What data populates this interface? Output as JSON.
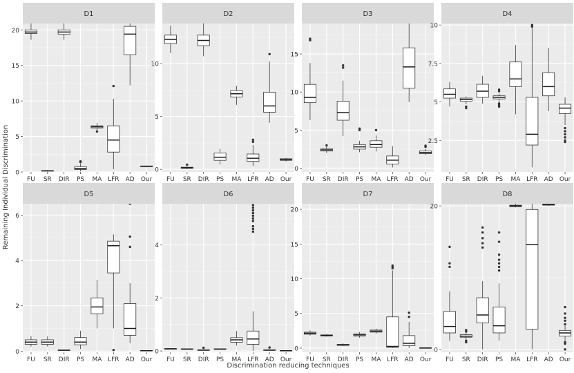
{
  "figure": {
    "xlabel": "Discrimination reducing techniques",
    "ylabel": "Remaining Individual Discrimination"
  },
  "chart_data": [
    {
      "type": "box",
      "title": "D1",
      "categories": [
        "FU",
        "SR",
        "DIR",
        "PS",
        "MA",
        "LFR",
        "AD",
        "Our"
      ],
      "ylim": [
        0,
        20.9
      ],
      "yticks": [
        0,
        5,
        10,
        15,
        20
      ],
      "ytick_labels": [
        "0",
        "5",
        "10",
        "15",
        "20"
      ],
      "boxes": [
        {
          "label": "FU",
          "whislo": 18.6,
          "q1": 19.5,
          "med": 19.7,
          "q3": 20.0,
          "whishi": 20.9,
          "outliers": []
        },
        {
          "label": "SR",
          "whislo": 0.05,
          "q1": 0.12,
          "med": 0.16,
          "q3": 0.2,
          "whishi": 0.28,
          "outliers": []
        },
        {
          "label": "DIR",
          "whislo": 18.6,
          "q1": 19.4,
          "med": 19.7,
          "q3": 20.0,
          "whishi": 20.9,
          "outliers": []
        },
        {
          "label": "PS",
          "whislo": 0.1,
          "q1": 0.35,
          "med": 0.5,
          "q3": 0.75,
          "whishi": 1.2,
          "outliers": [
            1.4,
            1.5
          ]
        },
        {
          "label": "MA",
          "whislo": 5.9,
          "q1": 6.2,
          "med": 6.35,
          "q3": 6.5,
          "whishi": 6.9,
          "outliers": [
            5.7
          ]
        },
        {
          "label": "LFR",
          "whislo": 0.4,
          "q1": 2.8,
          "med": 4.5,
          "q3": 6.5,
          "whishi": 10.3,
          "outliers": [
            12.1
          ]
        },
        {
          "label": "AD",
          "whislo": 12.2,
          "q1": 16.5,
          "med": 19.4,
          "q3": 20.5,
          "whishi": 20.9,
          "outliers": []
        },
        {
          "label": "Our",
          "whislo": 0.7,
          "q1": 0.75,
          "med": 0.8,
          "q3": 0.85,
          "whishi": 0.9,
          "outliers": []
        }
      ]
    },
    {
      "type": "box",
      "title": "D2",
      "categories": [
        "FU",
        "SR",
        "DIR",
        "PS",
        "MA",
        "LFR",
        "AD",
        "Our"
      ],
      "ylim": [
        -0.25,
        13.8
      ],
      "yticks": [
        0,
        5,
        10
      ],
      "ytick_labels": [
        "0",
        "5",
        "10"
      ],
      "boxes": [
        {
          "label": "FU",
          "whislo": 11.0,
          "q1": 11.9,
          "med": 12.3,
          "q3": 12.7,
          "whishi": 13.6,
          "outliers": []
        },
        {
          "label": "SR",
          "whislo": 0.03,
          "q1": 0.1,
          "med": 0.15,
          "q3": 0.2,
          "whishi": 0.3,
          "outliers": [
            0.45
          ]
        },
        {
          "label": "DIR",
          "whislo": 10.7,
          "q1": 11.7,
          "med": 12.2,
          "q3": 12.7,
          "whishi": 13.8,
          "outliers": []
        },
        {
          "label": "PS",
          "whislo": 0.45,
          "q1": 0.85,
          "med": 1.15,
          "q3": 1.55,
          "whishi": 1.95,
          "outliers": []
        },
        {
          "label": "MA",
          "whislo": 6.1,
          "q1": 6.85,
          "med": 7.15,
          "q3": 7.45,
          "whishi": 7.9,
          "outliers": []
        },
        {
          "label": "LFR",
          "whislo": 0.3,
          "q1": 0.75,
          "med": 1.05,
          "q3": 1.45,
          "whishi": 2.3,
          "outliers": [
            2.6,
            2.8
          ]
        },
        {
          "label": "AD",
          "whislo": 4.4,
          "q1": 5.4,
          "med": 6.0,
          "q3": 7.3,
          "whishi": 10.2,
          "outliers": [
            10.9
          ]
        },
        {
          "label": "Our",
          "whislo": 0.75,
          "q1": 0.85,
          "med": 0.92,
          "q3": 1.0,
          "whishi": 1.1,
          "outliers": []
        }
      ]
    },
    {
      "type": "box",
      "title": "D3",
      "categories": [
        "FU",
        "SR",
        "DIR",
        "PS",
        "MA",
        "LFR",
        "AD",
        "Our"
      ],
      "ylim": [
        -0.5,
        19.0
      ],
      "yticks": [
        0,
        5,
        10,
        15
      ],
      "ytick_labels": [
        "0",
        "5",
        "10",
        "15"
      ],
      "boxes": [
        {
          "label": "FU",
          "whislo": 6.3,
          "q1": 8.6,
          "med": 9.3,
          "q3": 11.0,
          "whishi": 13.8,
          "outliers": [
            16.8,
            17.0
          ]
        },
        {
          "label": "SR",
          "whislo": 2.0,
          "q1": 2.25,
          "med": 2.4,
          "q3": 2.55,
          "whishi": 2.85,
          "outliers": [
            3.0
          ]
        },
        {
          "label": "DIR",
          "whislo": 4.2,
          "q1": 6.3,
          "med": 7.3,
          "q3": 8.8,
          "whishi": 11.5,
          "outliers": [
            13.2,
            13.5
          ]
        },
        {
          "label": "PS",
          "whislo": 2.1,
          "q1": 2.5,
          "med": 2.8,
          "q3": 3.1,
          "whishi": 3.6,
          "outliers": [
            5.0,
            5.2
          ]
        },
        {
          "label": "MA",
          "whislo": 2.2,
          "q1": 2.75,
          "med": 3.1,
          "q3": 3.6,
          "whishi": 4.3,
          "outliers": [
            5.0
          ]
        },
        {
          "label": "LFR",
          "whislo": 0.1,
          "q1": 0.55,
          "med": 1.05,
          "q3": 1.6,
          "whishi": 2.9,
          "outliers": []
        },
        {
          "label": "AD",
          "whislo": 8.7,
          "q1": 10.5,
          "med": 13.3,
          "q3": 15.8,
          "whishi": 19.0,
          "outliers": []
        },
        {
          "label": "Our",
          "whislo": 1.7,
          "q1": 1.9,
          "med": 2.05,
          "q3": 2.25,
          "whishi": 2.5,
          "outliers": [
            2.8,
            2.95
          ]
        }
      ]
    },
    {
      "type": "box",
      "title": "D4",
      "categories": [
        "FU",
        "SR",
        "DIR",
        "PS",
        "MA",
        "LFR",
        "AD",
        "Our"
      ],
      "ylim": [
        0.45,
        10.1
      ],
      "yticks": [
        2.5,
        5.0,
        7.5,
        10.0
      ],
      "ytick_labels": [
        "2.5",
        "5",
        "7.5",
        "10"
      ],
      "boxes": [
        {
          "label": "FU",
          "whislo": 4.7,
          "q1": 5.25,
          "med": 5.5,
          "q3": 5.85,
          "whishi": 6.3,
          "outliers": []
        },
        {
          "label": "SR",
          "whislo": 4.85,
          "q1": 5.05,
          "med": 5.15,
          "q3": 5.25,
          "whishi": 5.35,
          "outliers": [
            4.7,
            4.6
          ]
        },
        {
          "label": "DIR",
          "whislo": 4.9,
          "q1": 5.3,
          "med": 5.7,
          "q3": 6.15,
          "whishi": 6.7,
          "outliers": []
        },
        {
          "label": "PS",
          "whislo": 5.0,
          "q1": 5.2,
          "med": 5.3,
          "q3": 5.4,
          "whishi": 5.55,
          "outliers": [
            4.7,
            4.8,
            4.9,
            5.7,
            5.8
          ]
        },
        {
          "label": "MA",
          "whislo": 4.2,
          "q1": 6.0,
          "med": 6.5,
          "q3": 7.6,
          "whishi": 8.7,
          "outliers": []
        },
        {
          "label": "LFR",
          "whislo": 0.75,
          "q1": 2.2,
          "med": 2.9,
          "q3": 5.3,
          "whishi": 9.8,
          "outliers": [
            9.9,
            10.0
          ]
        },
        {
          "label": "AD",
          "whislo": 4.4,
          "q1": 5.4,
          "med": 6.0,
          "q3": 6.9,
          "whishi": 8.5,
          "outliers": []
        },
        {
          "label": "Our",
          "whislo": 3.5,
          "q1": 4.25,
          "med": 4.6,
          "q3": 4.85,
          "whishi": 5.3,
          "outliers": [
            2.4,
            2.5,
            2.7,
            2.9,
            3.1,
            3.3
          ]
        }
      ]
    },
    {
      "type": "box",
      "title": "D5",
      "categories": [
        "FU",
        "SR",
        "DIR",
        "PS",
        "MA",
        "LFR",
        "AD",
        "Our"
      ],
      "ylim": [
        -0.05,
        6.5
      ],
      "yticks": [
        0,
        2,
        4,
        6
      ],
      "ytick_labels": [
        "0",
        "2",
        "4",
        "6"
      ],
      "boxes": [
        {
          "label": "FU",
          "whislo": 0.2,
          "q1": 0.3,
          "med": 0.4,
          "q3": 0.5,
          "whishi": 0.65,
          "outliers": []
        },
        {
          "label": "SR",
          "whislo": 0.2,
          "q1": 0.3,
          "med": 0.4,
          "q3": 0.5,
          "whishi": 0.65,
          "outliers": []
        },
        {
          "label": "DIR",
          "whislo": 0.02,
          "q1": 0.03,
          "med": 0.04,
          "q3": 0.05,
          "whishi": 0.06,
          "outliers": []
        },
        {
          "label": "PS",
          "whislo": 0.1,
          "q1": 0.28,
          "med": 0.4,
          "q3": 0.6,
          "whishi": 0.9,
          "outliers": []
        },
        {
          "label": "MA",
          "whislo": 1.0,
          "q1": 1.65,
          "med": 1.95,
          "q3": 2.35,
          "whishi": 3.15,
          "outliers": []
        },
        {
          "label": "LFR",
          "whislo": 1.0,
          "q1": 3.45,
          "med": 4.65,
          "q3": 4.85,
          "whishi": 5.15,
          "outliers": [
            0.05
          ]
        },
        {
          "label": "AD",
          "whislo": 0.35,
          "q1": 0.7,
          "med": 1.0,
          "q3": 2.1,
          "whishi": 3.0,
          "outliers": [
            4.6,
            5.05,
            6.5
          ]
        },
        {
          "label": "Our",
          "whislo": 0.0,
          "q1": 0.01,
          "med": 0.02,
          "q3": 0.03,
          "whishi": 0.04,
          "outliers": []
        }
      ]
    },
    {
      "type": "box",
      "title": "D6",
      "categories": [
        "FU",
        "SR",
        "DIR",
        "PS",
        "MA",
        "LFR",
        "AD",
        "Our"
      ],
      "ylim": [
        -0.05,
        5.55
      ],
      "yticks": [
        0,
        2,
        4
      ],
      "ytick_labels": [
        "0",
        "2",
        "4"
      ],
      "boxes": [
        {
          "label": "FU",
          "whislo": 0.06,
          "q1": 0.07,
          "med": 0.08,
          "q3": 0.09,
          "whishi": 0.1,
          "outliers": []
        },
        {
          "label": "SR",
          "whislo": 0.05,
          "q1": 0.06,
          "med": 0.07,
          "q3": 0.08,
          "whishi": 0.09,
          "outliers": []
        },
        {
          "label": "DIR",
          "whislo": 0.01,
          "q1": 0.02,
          "med": 0.03,
          "q3": 0.04,
          "whishi": 0.05,
          "outliers": [
            0.12
          ]
        },
        {
          "label": "PS",
          "whislo": 0.05,
          "q1": 0.06,
          "med": 0.07,
          "q3": 0.08,
          "whishi": 0.09,
          "outliers": []
        },
        {
          "label": "MA",
          "whislo": 0.2,
          "q1": 0.33,
          "med": 0.42,
          "q3": 0.5,
          "whishi": 0.75,
          "outliers": []
        },
        {
          "label": "LFR",
          "whislo": 0.0,
          "q1": 0.25,
          "med": 0.45,
          "q3": 0.75,
          "whishi": 1.5,
          "outliers": [
            4.5,
            4.6,
            4.7,
            4.9,
            5.0,
            5.1,
            5.2,
            5.3,
            5.4,
            5.5
          ]
        },
        {
          "label": "AD",
          "whislo": 0.01,
          "q1": 0.02,
          "med": 0.03,
          "q3": 0.04,
          "whishi": 0.06,
          "outliers": [
            0.13
          ]
        },
        {
          "label": "Our",
          "whislo": 0.0,
          "q1": 0.005,
          "med": 0.01,
          "q3": 0.015,
          "whishi": 0.02,
          "outliers": []
        }
      ]
    },
    {
      "type": "box",
      "title": "D7",
      "categories": [
        "FU",
        "SR",
        "DIR",
        "PS",
        "MA",
        "LFR",
        "AD",
        "Our"
      ],
      "ylim": [
        -0.6,
        20.8
      ],
      "yticks": [
        0,
        5,
        10,
        15,
        20
      ],
      "ytick_labels": [
        "0",
        "5",
        "10",
        "15",
        "20"
      ],
      "boxes": [
        {
          "label": "FU",
          "whislo": 1.8,
          "q1": 2.0,
          "med": 2.15,
          "q3": 2.3,
          "whishi": 2.55,
          "outliers": []
        },
        {
          "label": "SR",
          "whislo": 1.65,
          "q1": 1.75,
          "med": 1.85,
          "q3": 1.9,
          "whishi": 2.0,
          "outliers": []
        },
        {
          "label": "DIR",
          "whislo": 0.3,
          "q1": 0.4,
          "med": 0.45,
          "q3": 0.55,
          "whishi": 0.7,
          "outliers": []
        },
        {
          "label": "PS",
          "whislo": 1.5,
          "q1": 1.75,
          "med": 1.9,
          "q3": 2.05,
          "whishi": 2.3,
          "outliers": []
        },
        {
          "label": "MA",
          "whislo": 2.1,
          "q1": 2.3,
          "med": 2.45,
          "q3": 2.6,
          "whishi": 2.8,
          "outliers": []
        },
        {
          "label": "LFR",
          "whislo": 0.0,
          "q1": 0.1,
          "med": 0.25,
          "q3": 4.5,
          "whishi": 11.2,
          "outliers": [
            11.5,
            11.7,
            11.9
          ]
        },
        {
          "label": "AD",
          "whislo": 0.0,
          "q1": 0.35,
          "med": 0.7,
          "q3": 1.8,
          "whishi": 3.8,
          "outliers": [
            4.5,
            5.1
          ]
        },
        {
          "label": "Our",
          "whislo": 0.0,
          "q1": 0.01,
          "med": 0.02,
          "q3": 0.03,
          "whishi": 0.04,
          "outliers": []
        }
      ]
    },
    {
      "type": "box",
      "title": "D8",
      "categories": [
        "FU",
        "SR",
        "DIR",
        "PS",
        "MA",
        "LFR",
        "AD",
        "Our"
      ],
      "ylim": [
        -0.4,
        20.3
      ],
      "yticks": [
        0,
        20
      ],
      "ytick_labels": [
        "0",
        "20"
      ],
      "boxes": [
        {
          "label": "FU",
          "whislo": 1.2,
          "q1": 2.3,
          "med": 3.2,
          "q3": 5.3,
          "whishi": 8.1,
          "outliers": [
            11.5,
            12.0,
            14.3
          ]
        },
        {
          "label": "SR",
          "whislo": 1.4,
          "q1": 1.7,
          "med": 1.85,
          "q3": 2.05,
          "whishi": 2.4,
          "outliers": [
            1.0,
            1.2,
            2.5,
            2.7
          ]
        },
        {
          "label": "DIR",
          "whislo": 0.0,
          "q1": 3.7,
          "med": 4.8,
          "q3": 7.2,
          "whishi": 9.5,
          "outliers": [
            14.2,
            14.8,
            15.5,
            16.3,
            17.0
          ]
        },
        {
          "label": "PS",
          "whislo": 1.2,
          "q1": 2.3,
          "med": 3.3,
          "q3": 5.9,
          "whishi": 9.2,
          "outliers": [
            11.0,
            11.5,
            12.0,
            12.5,
            13.2,
            15.0,
            16.3
          ]
        },
        {
          "label": "MA",
          "whislo": 19.8,
          "q1": 19.9,
          "med": 20.0,
          "q3": 20.1,
          "whishi": 20.3,
          "outliers": []
        },
        {
          "label": "LFR",
          "whislo": 0.0,
          "q1": 2.8,
          "med": 14.6,
          "q3": 19.5,
          "whishi": 20.3,
          "outliers": []
        },
        {
          "label": "AD",
          "whislo": 20.0,
          "q1": 20.1,
          "med": 20.2,
          "q3": 20.25,
          "whishi": 20.3,
          "outliers": []
        },
        {
          "label": "Our",
          "whislo": 1.2,
          "q1": 1.85,
          "med": 2.3,
          "q3": 2.65,
          "whishi": 3.3,
          "outliers": [
            0.0,
            0.8,
            1.0,
            3.5,
            4.0,
            4.4,
            5.0,
            5.9
          ]
        }
      ]
    }
  ]
}
